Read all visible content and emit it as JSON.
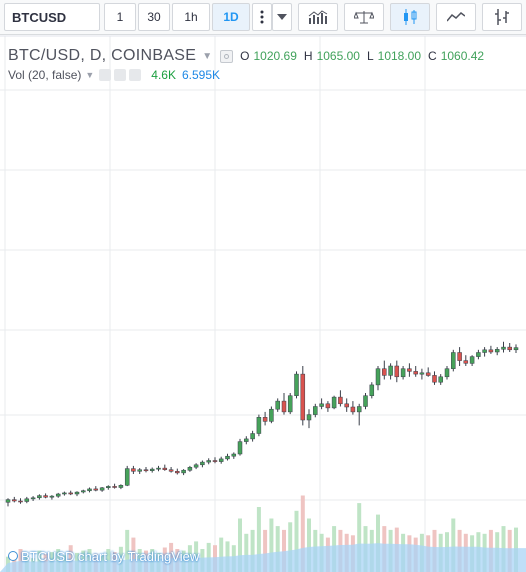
{
  "toolbar": {
    "symbol": "BTCUSD",
    "intervals": [
      {
        "label": "1",
        "active": false
      },
      {
        "label": "30",
        "active": false
      },
      {
        "label": "1h",
        "active": false
      },
      {
        "label": "1D",
        "active": true
      }
    ],
    "icons": [
      "more-vertical-icon",
      "dropdown-icon",
      "indicators-icon",
      "compare-scale-icon",
      "candles-icon",
      "area-chart-icon",
      "bar-chart-icon"
    ]
  },
  "legend": {
    "title": "BTC/USD, D, COINBASE",
    "o_label": "O",
    "o_value": "1020.69",
    "h_label": "H",
    "h_value": "1065.00",
    "l_label": "L",
    "l_value": "1018.00",
    "c_label": "C",
    "c_value": "1060.42"
  },
  "volume_legend": {
    "label": "Vol (20, false)",
    "value1": "4.6K",
    "value2": "6.595K"
  },
  "colors": {
    "up": "#46a25a",
    "down": "#d9534f",
    "grid": "#e8ebee",
    "volume_ma": "#a9d4f5",
    "volume_up": "#bfe4c6",
    "volume_down": "#efc4c2",
    "accent": "#2196f3"
  },
  "chart_data": {
    "type": "candlestick",
    "title": "BTC/USD, D, COINBASE",
    "ohlc_relative": [
      [
        0.195,
        0.21,
        0.18,
        0.205
      ],
      [
        0.205,
        0.215,
        0.195,
        0.2
      ],
      [
        0.2,
        0.21,
        0.19,
        0.198
      ],
      [
        0.198,
        0.215,
        0.192,
        0.208
      ],
      [
        0.208,
        0.218,
        0.2,
        0.212
      ],
      [
        0.212,
        0.225,
        0.205,
        0.22
      ],
      [
        0.22,
        0.228,
        0.21,
        0.214
      ],
      [
        0.214,
        0.222,
        0.205,
        0.218
      ],
      [
        0.218,
        0.23,
        0.212,
        0.226
      ],
      [
        0.226,
        0.235,
        0.22,
        0.23
      ],
      [
        0.23,
        0.238,
        0.222,
        0.226
      ],
      [
        0.226,
        0.236,
        0.218,
        0.233
      ],
      [
        0.233,
        0.242,
        0.228,
        0.238
      ],
      [
        0.238,
        0.25,
        0.232,
        0.245
      ],
      [
        0.245,
        0.255,
        0.236,
        0.24
      ],
      [
        0.24,
        0.252,
        0.234,
        0.249
      ],
      [
        0.249,
        0.258,
        0.242,
        0.254
      ],
      [
        0.254,
        0.264,
        0.246,
        0.25
      ],
      [
        0.25,
        0.262,
        0.244,
        0.258
      ],
      [
        0.258,
        0.33,
        0.255,
        0.32
      ],
      [
        0.32,
        0.33,
        0.3,
        0.31
      ],
      [
        0.31,
        0.322,
        0.3,
        0.316
      ],
      [
        0.316,
        0.326,
        0.306,
        0.312
      ],
      [
        0.312,
        0.324,
        0.305,
        0.318
      ],
      [
        0.318,
        0.33,
        0.31,
        0.322
      ],
      [
        0.322,
        0.335,
        0.312,
        0.316
      ],
      [
        0.316,
        0.326,
        0.305,
        0.31
      ],
      [
        0.31,
        0.32,
        0.298,
        0.304
      ],
      [
        0.304,
        0.318,
        0.296,
        0.314
      ],
      [
        0.314,
        0.33,
        0.308,
        0.325
      ],
      [
        0.325,
        0.34,
        0.318,
        0.334
      ],
      [
        0.334,
        0.35,
        0.325,
        0.344
      ],
      [
        0.344,
        0.358,
        0.336,
        0.35
      ],
      [
        0.35,
        0.362,
        0.34,
        0.346
      ],
      [
        0.346,
        0.364,
        0.338,
        0.356
      ],
      [
        0.356,
        0.375,
        0.35,
        0.366
      ],
      [
        0.366,
        0.38,
        0.356,
        0.374
      ],
      [
        0.374,
        0.43,
        0.368,
        0.42
      ],
      [
        0.42,
        0.44,
        0.41,
        0.43
      ],
      [
        0.43,
        0.46,
        0.42,
        0.45
      ],
      [
        0.45,
        0.52,
        0.44,
        0.51
      ],
      [
        0.51,
        0.53,
        0.48,
        0.495
      ],
      [
        0.495,
        0.55,
        0.488,
        0.54
      ],
      [
        0.54,
        0.58,
        0.53,
        0.57
      ],
      [
        0.57,
        0.6,
        0.52,
        0.53
      ],
      [
        0.53,
        0.6,
        0.522,
        0.59
      ],
      [
        0.59,
        0.68,
        0.58,
        0.67
      ],
      [
        0.67,
        0.7,
        0.48,
        0.5
      ],
      [
        0.5,
        0.54,
        0.47,
        0.52
      ],
      [
        0.52,
        0.56,
        0.51,
        0.55
      ],
      [
        0.55,
        0.58,
        0.54,
        0.56
      ],
      [
        0.56,
        0.57,
        0.53,
        0.545
      ],
      [
        0.545,
        0.59,
        0.54,
        0.585
      ],
      [
        0.585,
        0.61,
        0.55,
        0.56
      ],
      [
        0.56,
        0.58,
        0.53,
        0.548
      ],
      [
        0.548,
        0.57,
        0.52,
        0.53
      ],
      [
        0.53,
        0.56,
        0.48,
        0.55
      ],
      [
        0.55,
        0.6,
        0.54,
        0.59
      ],
      [
        0.59,
        0.64,
        0.58,
        0.63
      ],
      [
        0.63,
        0.7,
        0.61,
        0.69
      ],
      [
        0.69,
        0.72,
        0.65,
        0.665
      ],
      [
        0.665,
        0.71,
        0.65,
        0.7
      ],
      [
        0.7,
        0.72,
        0.64,
        0.66
      ],
      [
        0.66,
        0.7,
        0.65,
        0.69
      ],
      [
        0.69,
        0.71,
        0.66,
        0.68
      ],
      [
        0.68,
        0.7,
        0.66,
        0.67
      ],
      [
        0.67,
        0.69,
        0.65,
        0.675
      ],
      [
        0.675,
        0.695,
        0.66,
        0.665
      ],
      [
        0.665,
        0.68,
        0.63,
        0.64
      ],
      [
        0.64,
        0.67,
        0.63,
        0.66
      ],
      [
        0.66,
        0.7,
        0.65,
        0.69
      ],
      [
        0.69,
        0.76,
        0.68,
        0.75
      ],
      [
        0.75,
        0.77,
        0.7,
        0.72
      ],
      [
        0.72,
        0.74,
        0.7,
        0.71
      ],
      [
        0.71,
        0.74,
        0.7,
        0.735
      ],
      [
        0.735,
        0.76,
        0.725,
        0.75
      ],
      [
        0.75,
        0.77,
        0.735,
        0.76
      ],
      [
        0.76,
        0.775,
        0.745,
        0.752
      ],
      [
        0.752,
        0.77,
        0.74,
        0.762
      ],
      [
        0.762,
        0.79,
        0.75,
        0.77
      ],
      [
        0.77,
        0.785,
        0.752,
        0.76
      ],
      [
        0.76,
        0.78,
        0.748,
        0.768
      ]
    ],
    "volume_relative": [
      0.2,
      0.25,
      0.3,
      0.22,
      0.18,
      0.28,
      0.24,
      0.26,
      0.3,
      0.22,
      0.35,
      0.25,
      0.28,
      0.3,
      0.24,
      0.22,
      0.3,
      0.26,
      0.33,
      0.55,
      0.45,
      0.3,
      0.28,
      0.3,
      0.25,
      0.32,
      0.38,
      0.3,
      0.28,
      0.35,
      0.4,
      0.3,
      0.38,
      0.35,
      0.45,
      0.4,
      0.35,
      0.7,
      0.5,
      0.55,
      0.85,
      0.55,
      0.7,
      0.6,
      0.55,
      0.65,
      0.8,
      1.0,
      0.7,
      0.55,
      0.5,
      0.45,
      0.6,
      0.55,
      0.5,
      0.48,
      0.9,
      0.6,
      0.55,
      0.75,
      0.6,
      0.55,
      0.58,
      0.5,
      0.48,
      0.45,
      0.5,
      0.48,
      0.55,
      0.5,
      0.52,
      0.7,
      0.55,
      0.5,
      0.48,
      0.52,
      0.5,
      0.55,
      0.52,
      0.6,
      0.55,
      0.58
    ]
  }
}
